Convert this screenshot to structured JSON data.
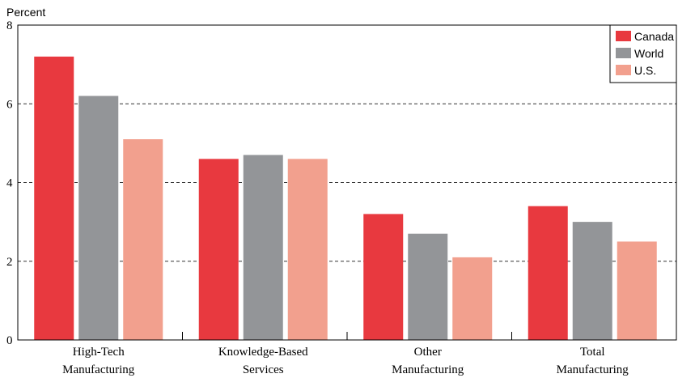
{
  "chart_data": {
    "type": "bar",
    "ylabel": "Percent",
    "ylim": [
      0,
      8
    ],
    "yticks": [
      0,
      2,
      4,
      6,
      8
    ],
    "grid": "horizontal-dashed",
    "legend_position": "top-right",
    "categories": [
      [
        "High-Tech",
        "Manufacturing"
      ],
      [
        "Knowledge-Based",
        "Services"
      ],
      [
        "Other",
        "Manufacturing"
      ],
      [
        "Total",
        "Manufacturing"
      ]
    ],
    "series": [
      {
        "name": "Canada",
        "color": "#e8393f",
        "values": [
          7.2,
          4.6,
          3.2,
          3.4
        ]
      },
      {
        "name": "World",
        "color": "#939598",
        "values": [
          6.2,
          4.7,
          2.7,
          3.0
        ]
      },
      {
        "name": "U.S.",
        "color": "#f2a08e",
        "values": [
          5.1,
          4.6,
          2.1,
          2.5
        ]
      }
    ]
  }
}
